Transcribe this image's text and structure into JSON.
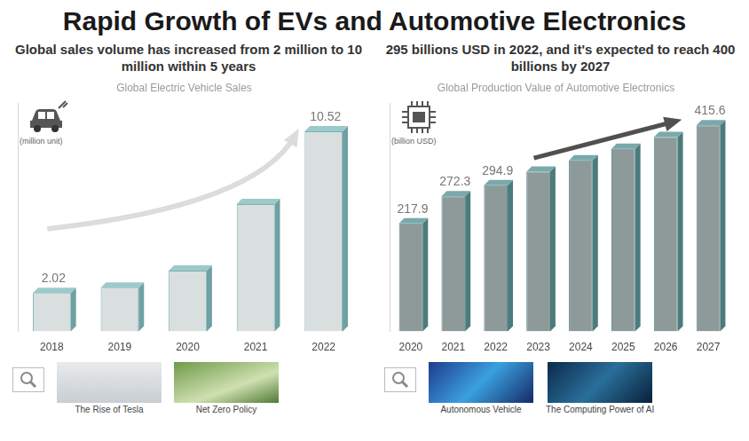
{
  "title": "Rapid Growth of EVs and Automotive Electronics",
  "chart_data": [
    {
      "type": "bar",
      "subtitle": "Global sales volume has increased from 2 million to 10 million within 5 years",
      "title": "Global Electric Vehicle Sales",
      "ylabel": "(million unit)",
      "categories": [
        "2018",
        "2019",
        "2020",
        "2021",
        "2022"
      ],
      "values": [
        2.02,
        2.3,
        3.2,
        6.7,
        10.52
      ],
      "value_labels": [
        "2.02",
        null,
        null,
        null,
        "10.52"
      ],
      "data_labels": true,
      "color": "#d9dfdf",
      "ylim": [
        0,
        12
      ],
      "tick_labels": "x",
      "grid": false,
      "annotations": [
        "The Rise of Tesla",
        "Net Zero Policy"
      ]
    },
    {
      "type": "bar",
      "subtitle": "295 billions USD in 2022, and it's expected to reach 400 billions by 2027",
      "title": "Global Production Value of Automotive Electronics",
      "ylabel": "(billion USD)",
      "categories": [
        "2020",
        "2021",
        "2022",
        "2023",
        "2024",
        "2025",
        "2026",
        "2027"
      ],
      "values": [
        217.9,
        272.3,
        294.9,
        322,
        345,
        368,
        392,
        415.6
      ],
      "value_labels": [
        "217.9",
        "272.3",
        "294.9",
        null,
        null,
        null,
        null,
        "415.6"
      ],
      "data_labels": true,
      "color": "#8e9a9a",
      "ylim": [
        0,
        460
      ],
      "tick_labels": "x",
      "grid": false,
      "annotations": [
        "Autonomous Vehicle",
        "The Computing Power of AI"
      ]
    }
  ]
}
